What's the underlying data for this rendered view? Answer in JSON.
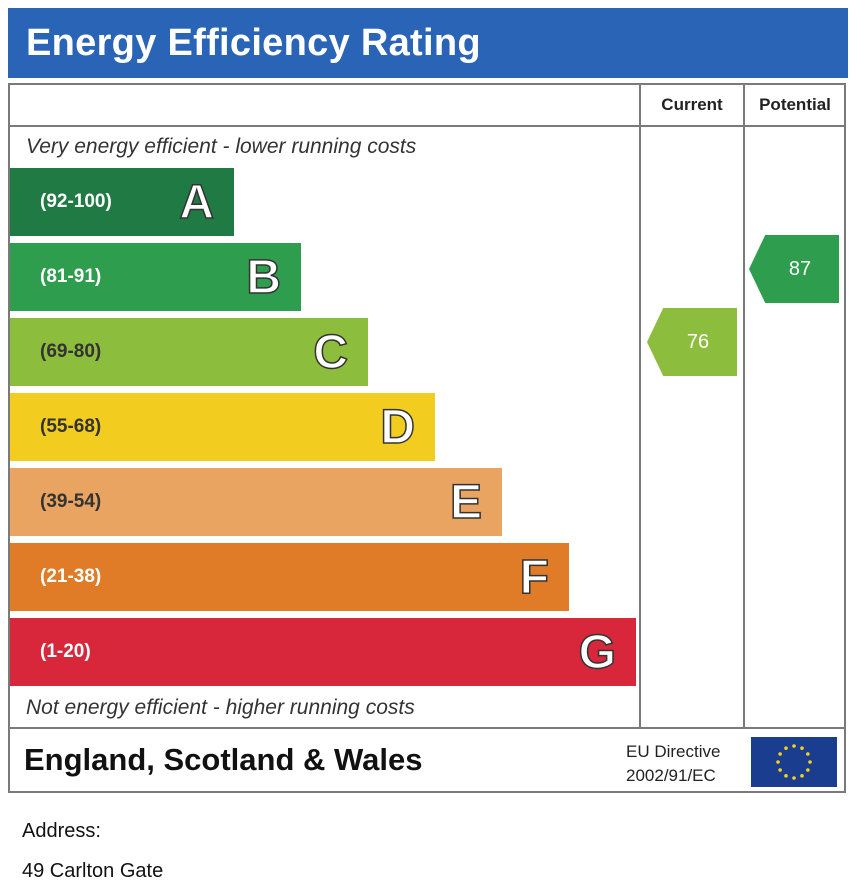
{
  "title": "Energy Efficiency Rating",
  "columns": {
    "current": "Current",
    "potential": "Potential"
  },
  "notes": {
    "top": "Very energy efficient - lower running costs",
    "bottom": "Not energy efficient - higher running costs"
  },
  "chart_data": {
    "type": "bar",
    "title": "Energy Efficiency Rating",
    "categories": [
      "A",
      "B",
      "C",
      "D",
      "E",
      "F",
      "G"
    ],
    "ranges": [
      "(92-100)",
      "(81-91)",
      "(69-80)",
      "(55-68)",
      "(39-54)",
      "(21-38)",
      "(1-20)"
    ],
    "colors": [
      "#1f7a44",
      "#2e9e4e",
      "#8dbd3c",
      "#f2cd1f",
      "#eaa462",
      "#e07b28",
      "#d8263a"
    ],
    "current": {
      "value": "76",
      "band": "C",
      "color": "#8dbd3c"
    },
    "potential": {
      "value": "87",
      "band": "B",
      "color": "#2e9e4e"
    }
  },
  "footer": {
    "region": "England, Scotland & Wales",
    "directive_line1": "EU Directive",
    "directive_line2": "2002/91/EC"
  },
  "address": {
    "label": "Address:",
    "value": "49 Carlton Gate"
  }
}
